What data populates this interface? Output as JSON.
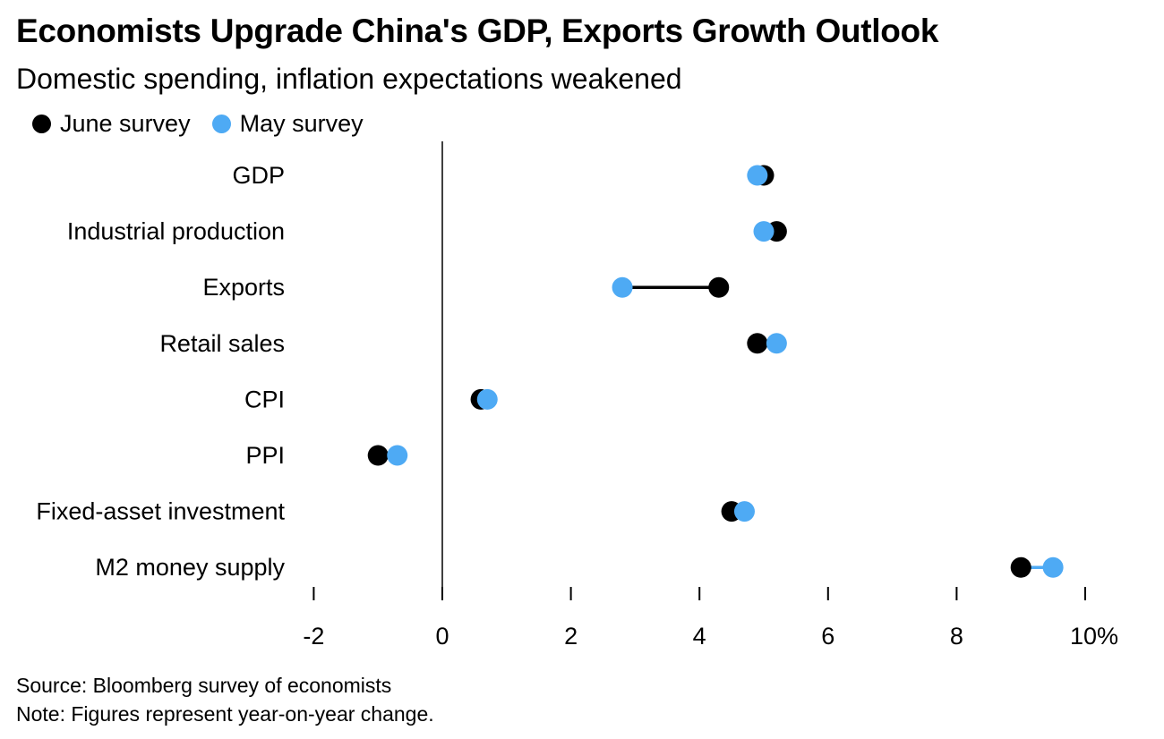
{
  "header": {
    "title": "Economists Upgrade China's GDP, Exports Growth Outlook",
    "subtitle": "Domestic spending, inflation expectations weakened"
  },
  "legend": {
    "items": [
      {
        "label": "June survey",
        "color": "#000000"
      },
      {
        "label": "May survey",
        "color": "#4eaaf4"
      }
    ]
  },
  "chart_data": {
    "type": "dot-plot",
    "categories": [
      "GDP",
      "Industrial production",
      "Exports",
      "Retail sales",
      "CPI",
      "PPI",
      "Fixed-asset investment",
      "M2 money supply"
    ],
    "series": [
      {
        "name": "June survey",
        "color": "#000000",
        "values": [
          5.0,
          5.2,
          4.3,
          4.9,
          0.6,
          -1.0,
          4.5,
          9.0
        ]
      },
      {
        "name": "May survey",
        "color": "#4eaaf4",
        "values": [
          4.9,
          5.0,
          2.8,
          5.2,
          0.7,
          -0.7,
          4.7,
          9.5
        ]
      }
    ],
    "x_ticks": [
      "-2",
      "0",
      "2",
      "4",
      "6",
      "8",
      "10%"
    ],
    "x_tick_values": [
      -2,
      0,
      2,
      4,
      6,
      8,
      10
    ],
    "xlim": [
      -2,
      10
    ]
  },
  "footer": {
    "source": "Source: Bloomberg survey of economists",
    "note": "Note: Figures represent year-on-year change."
  }
}
